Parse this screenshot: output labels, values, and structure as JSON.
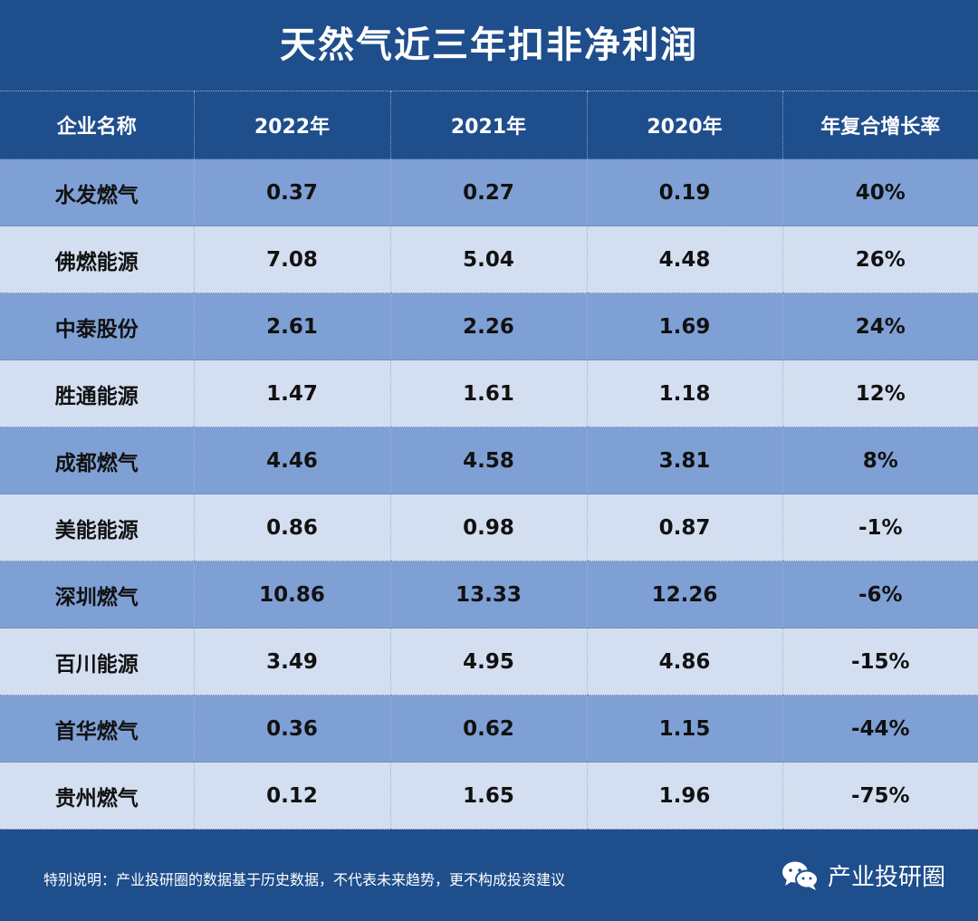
{
  "title": "天然气近三年扣非净利润",
  "chart_data": {
    "type": "table",
    "columns": [
      "企业名称",
      "2022年",
      "2021年",
      "2020年",
      "年复合增长率"
    ],
    "rows": [
      [
        "水发燃气",
        "0.37",
        "0.27",
        "0.19",
        "40%"
      ],
      [
        "佛燃能源",
        "7.08",
        "5.04",
        "4.48",
        "26%"
      ],
      [
        "中泰股份",
        "2.61",
        "2.26",
        "1.69",
        "24%"
      ],
      [
        "胜通能源",
        "1.47",
        "1.61",
        "1.18",
        "12%"
      ],
      [
        "成都燃气",
        "4.46",
        "4.58",
        "3.81",
        "8%"
      ],
      [
        "美能能源",
        "0.86",
        "0.98",
        "0.87",
        "-1%"
      ],
      [
        "深圳燃气",
        "10.86",
        "13.33",
        "12.26",
        "-6%"
      ],
      [
        "百川能源",
        "3.49",
        "4.95",
        "4.86",
        "-15%"
      ],
      [
        "首华燃气",
        "0.36",
        "0.62",
        "1.15",
        "-44%"
      ],
      [
        "贵州燃气",
        "0.12",
        "1.65",
        "1.96",
        "-75%"
      ]
    ]
  },
  "footer": {
    "note": "特别说明：产业投研圈的数据基于历史数据，不代表未来趋势，更不构成投资建议",
    "brand": "产业投研圈",
    "brand_icon": "wechat-icon"
  },
  "colors": {
    "header_bg": "#1f4e8c",
    "row_dark": "#7fa0d4",
    "row_light": "#d3dff0"
  }
}
